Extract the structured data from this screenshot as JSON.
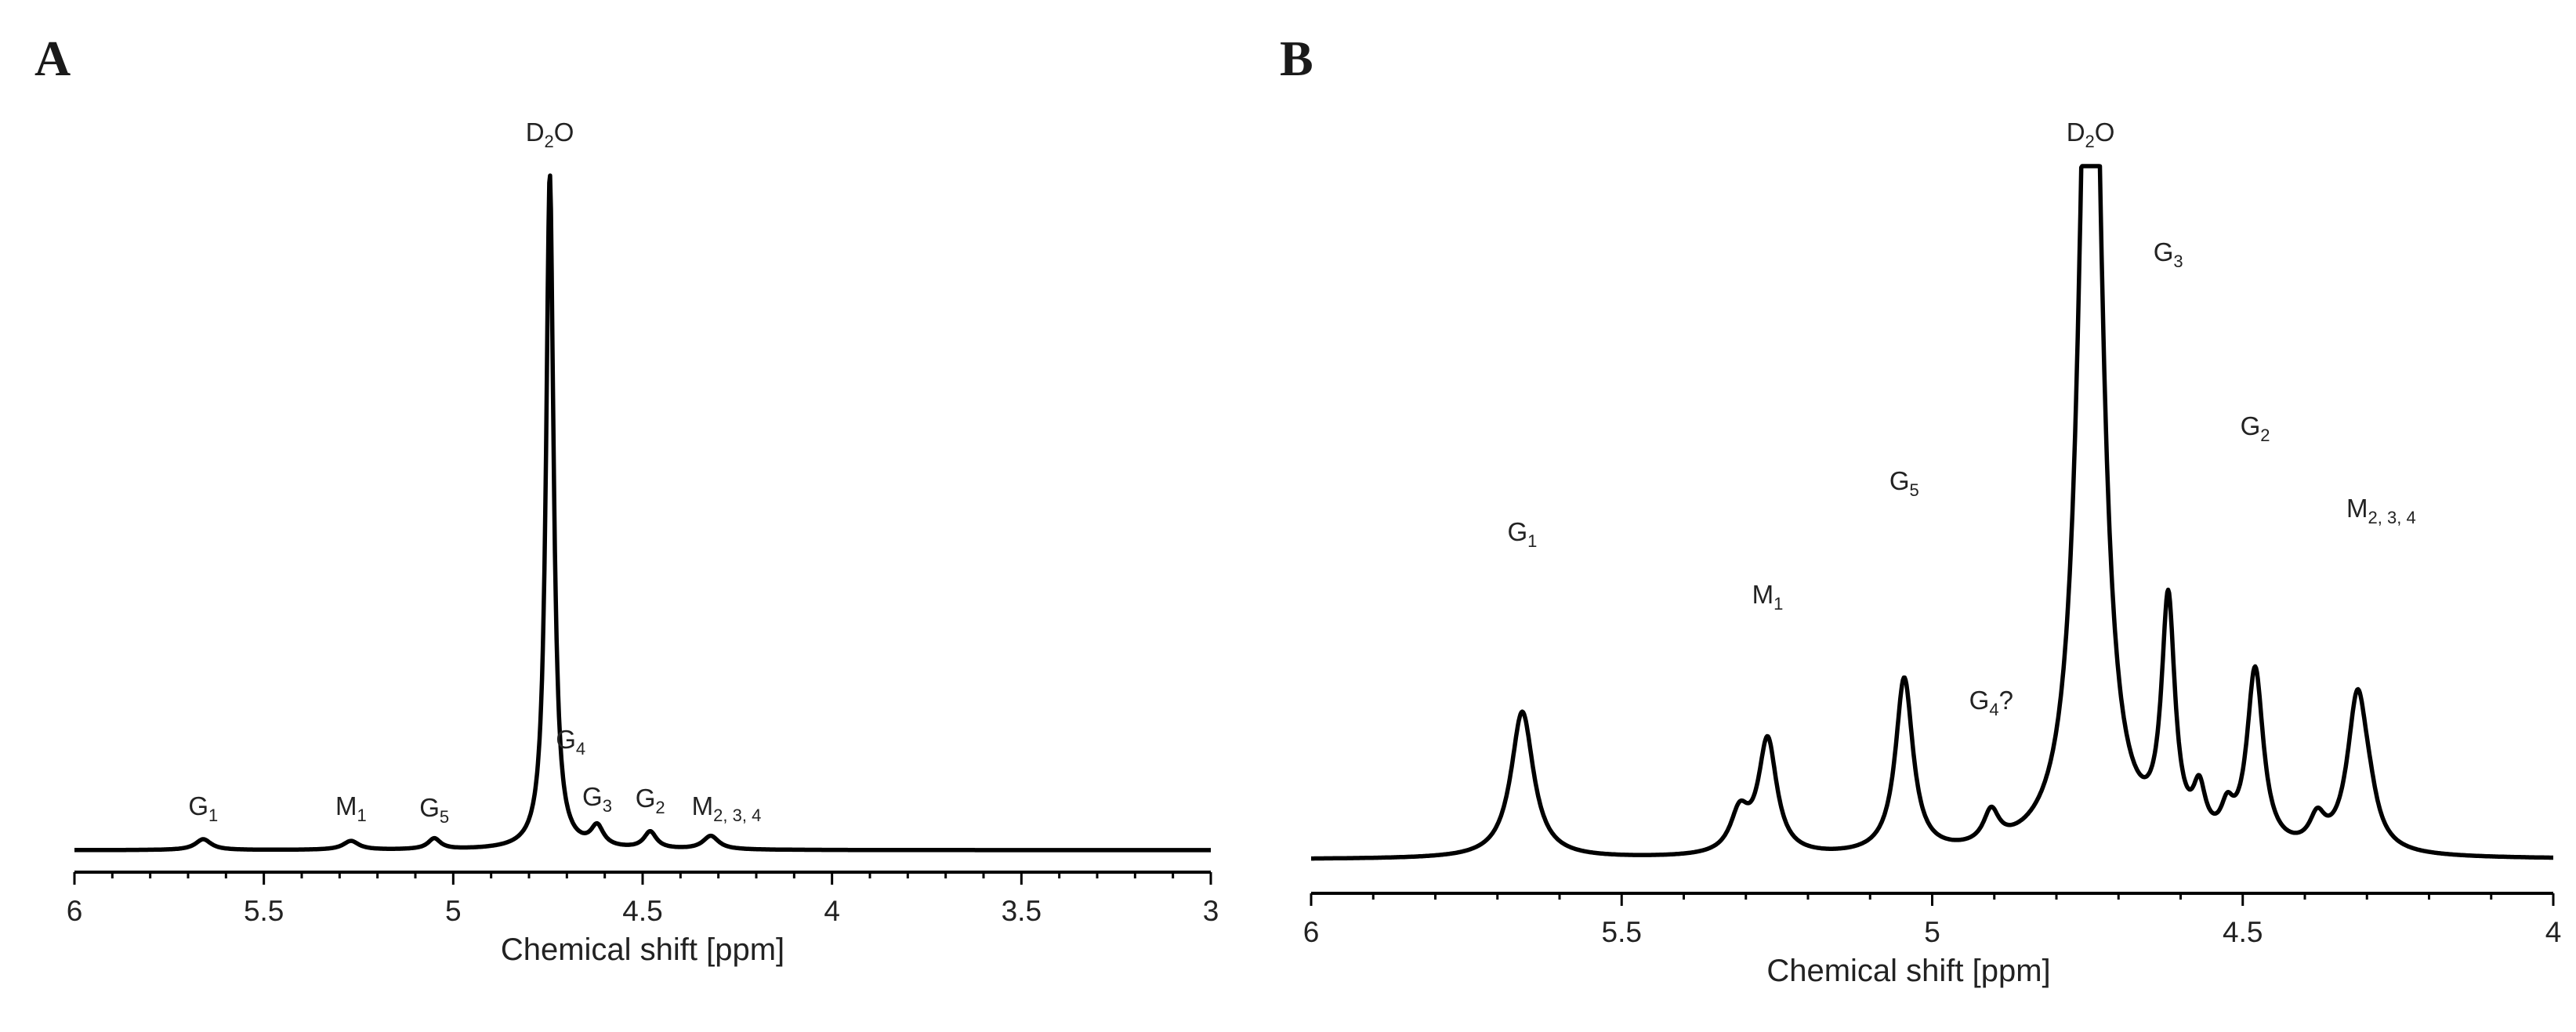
{
  "chart_data": [
    {
      "type": "line",
      "panel": "A",
      "title": "",
      "xlabel": "Chemical shift [ppm]",
      "ylabel": "",
      "xlim": [
        6,
        3
      ],
      "xticks": [
        "6",
        "5.5",
        "5",
        "4.5",
        "4",
        "3.5",
        "3"
      ],
      "ylim": [
        0,
        1.0
      ],
      "peaks": [
        {
          "label": "G",
          "sub": "1",
          "x": 5.66,
          "height": 0.016,
          "width": 0.025
        },
        {
          "label": "M",
          "sub": "1",
          "x": 5.27,
          "height": 0.013,
          "width": 0.025
        },
        {
          "label": "G",
          "sub": "5",
          "x": 5.05,
          "height": 0.016,
          "width": 0.02
        },
        {
          "label": "D",
          "sub": "2",
          "suffix": "O",
          "x": 4.745,
          "height": 1.0,
          "width": 0.012
        },
        {
          "label": "G",
          "sub": "4",
          "x": 4.69,
          "height": 0.0,
          "width": 0.02
        },
        {
          "label": "G",
          "sub": "3",
          "x": 4.62,
          "height": 0.03,
          "width": 0.02
        },
        {
          "label": "G",
          "sub": "2",
          "x": 4.48,
          "height": 0.025,
          "width": 0.02
        },
        {
          "label": "M",
          "sub": "2, 3, 4",
          "x": 4.32,
          "height": 0.02,
          "width": 0.025
        }
      ]
    },
    {
      "type": "line",
      "panel": "B",
      "title": "",
      "xlabel": "Chemical shift [ppm]",
      "ylabel": "",
      "xlim": [
        6,
        4
      ],
      "xticks": [
        "6",
        "5.5",
        "5",
        "4.5",
        "4"
      ],
      "ylim": [
        0,
        1.0
      ],
      "clipped_peak": "D2O",
      "peaks": [
        {
          "label": "G",
          "sub": "1",
          "x": 5.66,
          "height": 0.41,
          "width": 0.022
        },
        {
          "label": "M",
          "sub": "1",
          "x": 5.265,
          "height": 0.32,
          "width": 0.018
        },
        {
          "label": null,
          "x": 5.31,
          "height": 0.11,
          "width": 0.018
        },
        {
          "label": "G",
          "sub": "5",
          "x": 5.045,
          "height": 0.49,
          "width": 0.017
        },
        {
          "label": "G",
          "sub": "4",
          "suffix": "?",
          "x": 4.905,
          "height": 0.09,
          "width": 0.015
        },
        {
          "label": "D",
          "sub": "2",
          "suffix": "O",
          "x": 4.745,
          "height": 3.0,
          "width": 0.02
        },
        {
          "label": "G",
          "sub": "3",
          "x": 4.62,
          "height": 0.66,
          "width": 0.013
        },
        {
          "label": null,
          "x": 4.57,
          "height": 0.13,
          "width": 0.012
        },
        {
          "label": null,
          "x": 4.525,
          "height": 0.08,
          "width": 0.012
        },
        {
          "label": "G",
          "sub": "2",
          "x": 4.48,
          "height": 0.5,
          "width": 0.016
        },
        {
          "label": null,
          "x": 4.38,
          "height": 0.08,
          "width": 0.015
        },
        {
          "label": "M",
          "sub": "2, 3, 4",
          "x": 4.315,
          "height": 0.44,
          "width": 0.02
        },
        {
          "label": null,
          "x": 4.295,
          "height": 0.05,
          "width": 0.015
        }
      ]
    }
  ]
}
